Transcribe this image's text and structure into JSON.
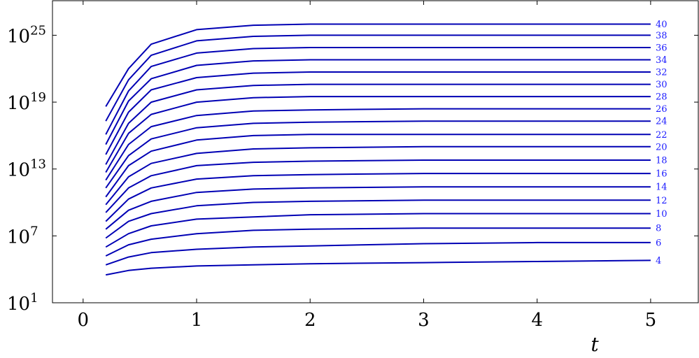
{
  "chart_data": {
    "type": "line",
    "title": "",
    "xlabel": "t",
    "ylabel": "",
    "xlim": [
      -0.27,
      5.42
    ],
    "ylim_log10": [
      1,
      28.1
    ],
    "y_scale": "log",
    "grid": false,
    "line_color": "#0000b4",
    "label_color": "#1a1aff",
    "x_ticks": [
      {
        "value": 0,
        "label": "0"
      },
      {
        "value": 1,
        "label": "1"
      },
      {
        "value": 2,
        "label": "2"
      },
      {
        "value": 3,
        "label": "3"
      },
      {
        "value": 4,
        "label": "4"
      },
      {
        "value": 5,
        "label": "5"
      }
    ],
    "y_ticks": [
      {
        "value_log10": 1,
        "base": "10",
        "exp": "1"
      },
      {
        "value_log10": 7,
        "base": "10",
        "exp": "7"
      },
      {
        "value_log10": 13,
        "base": "10",
        "exp": "13"
      },
      {
        "value_log10": 19,
        "base": "10",
        "exp": "19"
      },
      {
        "value_log10": 25,
        "base": "10",
        "exp": "25"
      }
    ],
    "x": [
      0.2,
      0.4,
      0.6,
      1.0,
      1.5,
      2.0,
      3.0,
      4.0,
      5.0
    ],
    "series": [
      {
        "name": "4",
        "log10_values": [
          3.5,
          3.9,
          4.1,
          4.3,
          4.4,
          4.5,
          4.6,
          4.7,
          4.8
        ]
      },
      {
        "name": "6",
        "log10_values": [
          4.4,
          5.1,
          5.5,
          5.8,
          6.0,
          6.1,
          6.3,
          6.4,
          6.4
        ]
      },
      {
        "name": "8",
        "log10_values": [
          5.2,
          6.2,
          6.7,
          7.2,
          7.5,
          7.6,
          7.7,
          7.7,
          7.7
        ]
      },
      {
        "name": "10",
        "log10_values": [
          6.0,
          7.2,
          7.9,
          8.5,
          8.7,
          8.9,
          9.0,
          9.0,
          9.0
        ]
      },
      {
        "name": "12",
        "log10_values": [
          6.8,
          8.3,
          9.0,
          9.7,
          10.0,
          10.1,
          10.2,
          10.2,
          10.2
        ]
      },
      {
        "name": "14",
        "log10_values": [
          7.6,
          9.3,
          10.1,
          10.9,
          11.2,
          11.3,
          11.4,
          11.4,
          11.4
        ]
      },
      {
        "name": "16",
        "log10_values": [
          8.3,
          10.3,
          11.3,
          12.1,
          12.4,
          12.5,
          12.6,
          12.6,
          12.6
        ]
      },
      {
        "name": "18",
        "log10_values": [
          9.1,
          11.3,
          12.4,
          13.3,
          13.6,
          13.7,
          13.8,
          13.8,
          13.8
        ]
      },
      {
        "name": "20",
        "log10_values": [
          9.8,
          12.3,
          13.5,
          14.4,
          14.8,
          14.9,
          15.0,
          15.0,
          15.0
        ]
      },
      {
        "name": "22",
        "log10_values": [
          10.5,
          13.3,
          14.6,
          15.6,
          16.0,
          16.1,
          16.1,
          16.1,
          16.1
        ]
      },
      {
        "name": "24",
        "log10_values": [
          11.3,
          14.2,
          15.7,
          16.7,
          17.1,
          17.2,
          17.3,
          17.3,
          17.3
        ]
      },
      {
        "name": "26",
        "log10_values": [
          12.0,
          15.2,
          16.8,
          17.8,
          18.2,
          18.3,
          18.4,
          18.4,
          18.4
        ]
      },
      {
        "name": "28",
        "log10_values": [
          12.7,
          16.2,
          17.9,
          19.0,
          19.4,
          19.5,
          19.5,
          19.5,
          19.5
        ]
      },
      {
        "name": "30",
        "log10_values": [
          13.4,
          17.1,
          19.0,
          20.1,
          20.5,
          20.6,
          20.6,
          20.6,
          20.6
        ]
      },
      {
        "name": "32",
        "log10_values": [
          14.3,
          18.1,
          20.1,
          21.2,
          21.6,
          21.7,
          21.7,
          21.7,
          21.7
        ]
      },
      {
        "name": "34",
        "log10_values": [
          15.2,
          19.1,
          21.1,
          22.3,
          22.7,
          22.8,
          22.8,
          22.8,
          22.8
        ]
      },
      {
        "name": "36",
        "log10_values": [
          16.1,
          20.0,
          22.2,
          23.4,
          23.8,
          23.9,
          23.9,
          23.9,
          23.9
        ]
      },
      {
        "name": "38",
        "log10_values": [
          17.3,
          21.0,
          23.2,
          24.5,
          24.9,
          25.0,
          25.0,
          25.0,
          25.0
        ]
      },
      {
        "name": "40",
        "log10_values": [
          18.6,
          22.0,
          24.2,
          25.5,
          25.9,
          26.0,
          26.0,
          26.0,
          26.0
        ]
      }
    ]
  }
}
